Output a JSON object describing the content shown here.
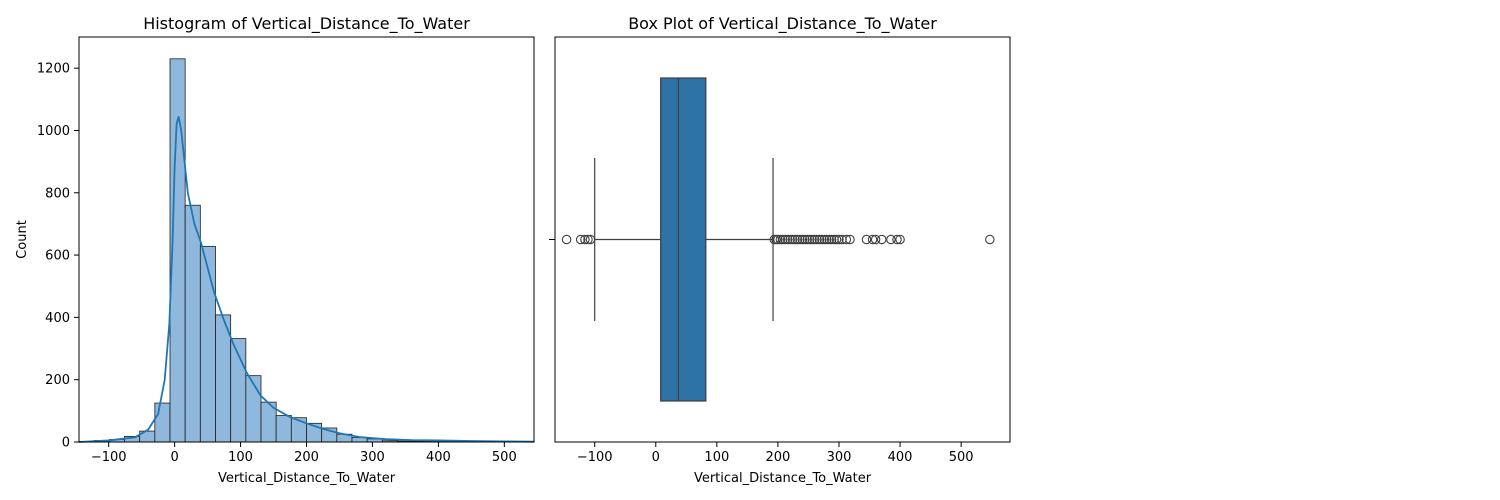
{
  "chart_data": [
    {
      "type": "bar",
      "subtype": "histogram-with-kde",
      "title": "Histogram of Vertical_Distance_To_Water",
      "xlabel": "Vertical_Distance_To_Water",
      "ylabel": "Count",
      "xlim": [
        -145,
        545
      ],
      "ylim": [
        0,
        1300
      ],
      "xticks": [
        -100,
        0,
        100,
        200,
        300,
        400,
        500
      ],
      "yticks": [
        0,
        200,
        400,
        600,
        800,
        1000,
        1200
      ],
      "grid": false,
      "bar_color": "#8fb8dc",
      "edge_color": "#1f1f1f",
      "kde_color": "#1f77b4",
      "bins": [
        {
          "x0": -145,
          "x1": -122,
          "count": 2
        },
        {
          "x0": -122,
          "x1": -99,
          "count": 5
        },
        {
          "x0": -99,
          "x1": -76,
          "count": 8
        },
        {
          "x0": -76,
          "x1": -53,
          "count": 18
        },
        {
          "x0": -53,
          "x1": -30,
          "count": 35
        },
        {
          "x0": -30,
          "x1": -7,
          "count": 125
        },
        {
          "x0": -7,
          "x1": 16,
          "count": 1230
        },
        {
          "x0": 16,
          "x1": 39,
          "count": 760
        },
        {
          "x0": 39,
          "x1": 62,
          "count": 628
        },
        {
          "x0": 62,
          "x1": 85,
          "count": 408
        },
        {
          "x0": 85,
          "x1": 108,
          "count": 332
        },
        {
          "x0": 108,
          "x1": 131,
          "count": 213
        },
        {
          "x0": 131,
          "x1": 154,
          "count": 128
        },
        {
          "x0": 154,
          "x1": 177,
          "count": 85
        },
        {
          "x0": 177,
          "x1": 200,
          "count": 78
        },
        {
          "x0": 200,
          "x1": 223,
          "count": 60
        },
        {
          "x0": 223,
          "x1": 246,
          "count": 45
        },
        {
          "x0": 246,
          "x1": 269,
          "count": 25
        },
        {
          "x0": 269,
          "x1": 292,
          "count": 14
        },
        {
          "x0": 292,
          "x1": 315,
          "count": 10
        },
        {
          "x0": 315,
          "x1": 338,
          "count": 4
        },
        {
          "x0": 338,
          "x1": 361,
          "count": 3
        },
        {
          "x0": 361,
          "x1": 384,
          "count": 3
        },
        {
          "x0": 384,
          "x1": 407,
          "count": 3
        },
        {
          "x0": 407,
          "x1": 430,
          "count": 2
        },
        {
          "x0": 430,
          "x1": 453,
          "count": 1
        },
        {
          "x0": 453,
          "x1": 476,
          "count": 1
        },
        {
          "x0": 476,
          "x1": 499,
          "count": 1
        },
        {
          "x0": 499,
          "x1": 522,
          "count": 1
        },
        {
          "x0": 522,
          "x1": 545,
          "count": 1
        }
      ],
      "kde": {
        "x": [
          -145,
          -100,
          -60,
          -40,
          -25,
          -15,
          -8,
          -3,
          0,
          3,
          6,
          10,
          15,
          20,
          30,
          40,
          50,
          60,
          75,
          90,
          110,
          130,
          150,
          175,
          200,
          225,
          250,
          280,
          320,
          360,
          400,
          450,
          500,
          545
        ],
        "y": [
          0,
          5,
          15,
          40,
          90,
          200,
          380,
          650,
          880,
          1020,
          1045,
          1000,
          900,
          800,
          700,
          640,
          560,
          480,
          390,
          310,
          220,
          150,
          110,
          80,
          60,
          42,
          28,
          16,
          9,
          6,
          5,
          3,
          2,
          1
        ]
      }
    },
    {
      "type": "box",
      "title": "Box Plot of Vertical_Distance_To_Water",
      "xlabel": "Vertical_Distance_To_Water",
      "ylabel": "",
      "xlim": [
        -165,
        580
      ],
      "xticks": [
        -100,
        0,
        100,
        200,
        300,
        400,
        500
      ],
      "grid": false,
      "box_color": "#2f72a5",
      "whisker_low": -100,
      "q1": 8,
      "median": 37,
      "q3": 82,
      "whisker_high": 192,
      "outliers": [
        -146,
        -123,
        -116,
        -111,
        -107,
        194,
        197,
        200,
        204,
        208,
        212,
        216,
        220,
        224,
        228,
        232,
        236,
        240,
        244,
        248,
        252,
        256,
        260,
        264,
        268,
        272,
        276,
        280,
        284,
        288,
        292,
        296,
        300,
        305,
        312,
        318,
        345,
        355,
        360,
        370,
        385,
        395,
        400,
        547
      ]
    }
  ]
}
